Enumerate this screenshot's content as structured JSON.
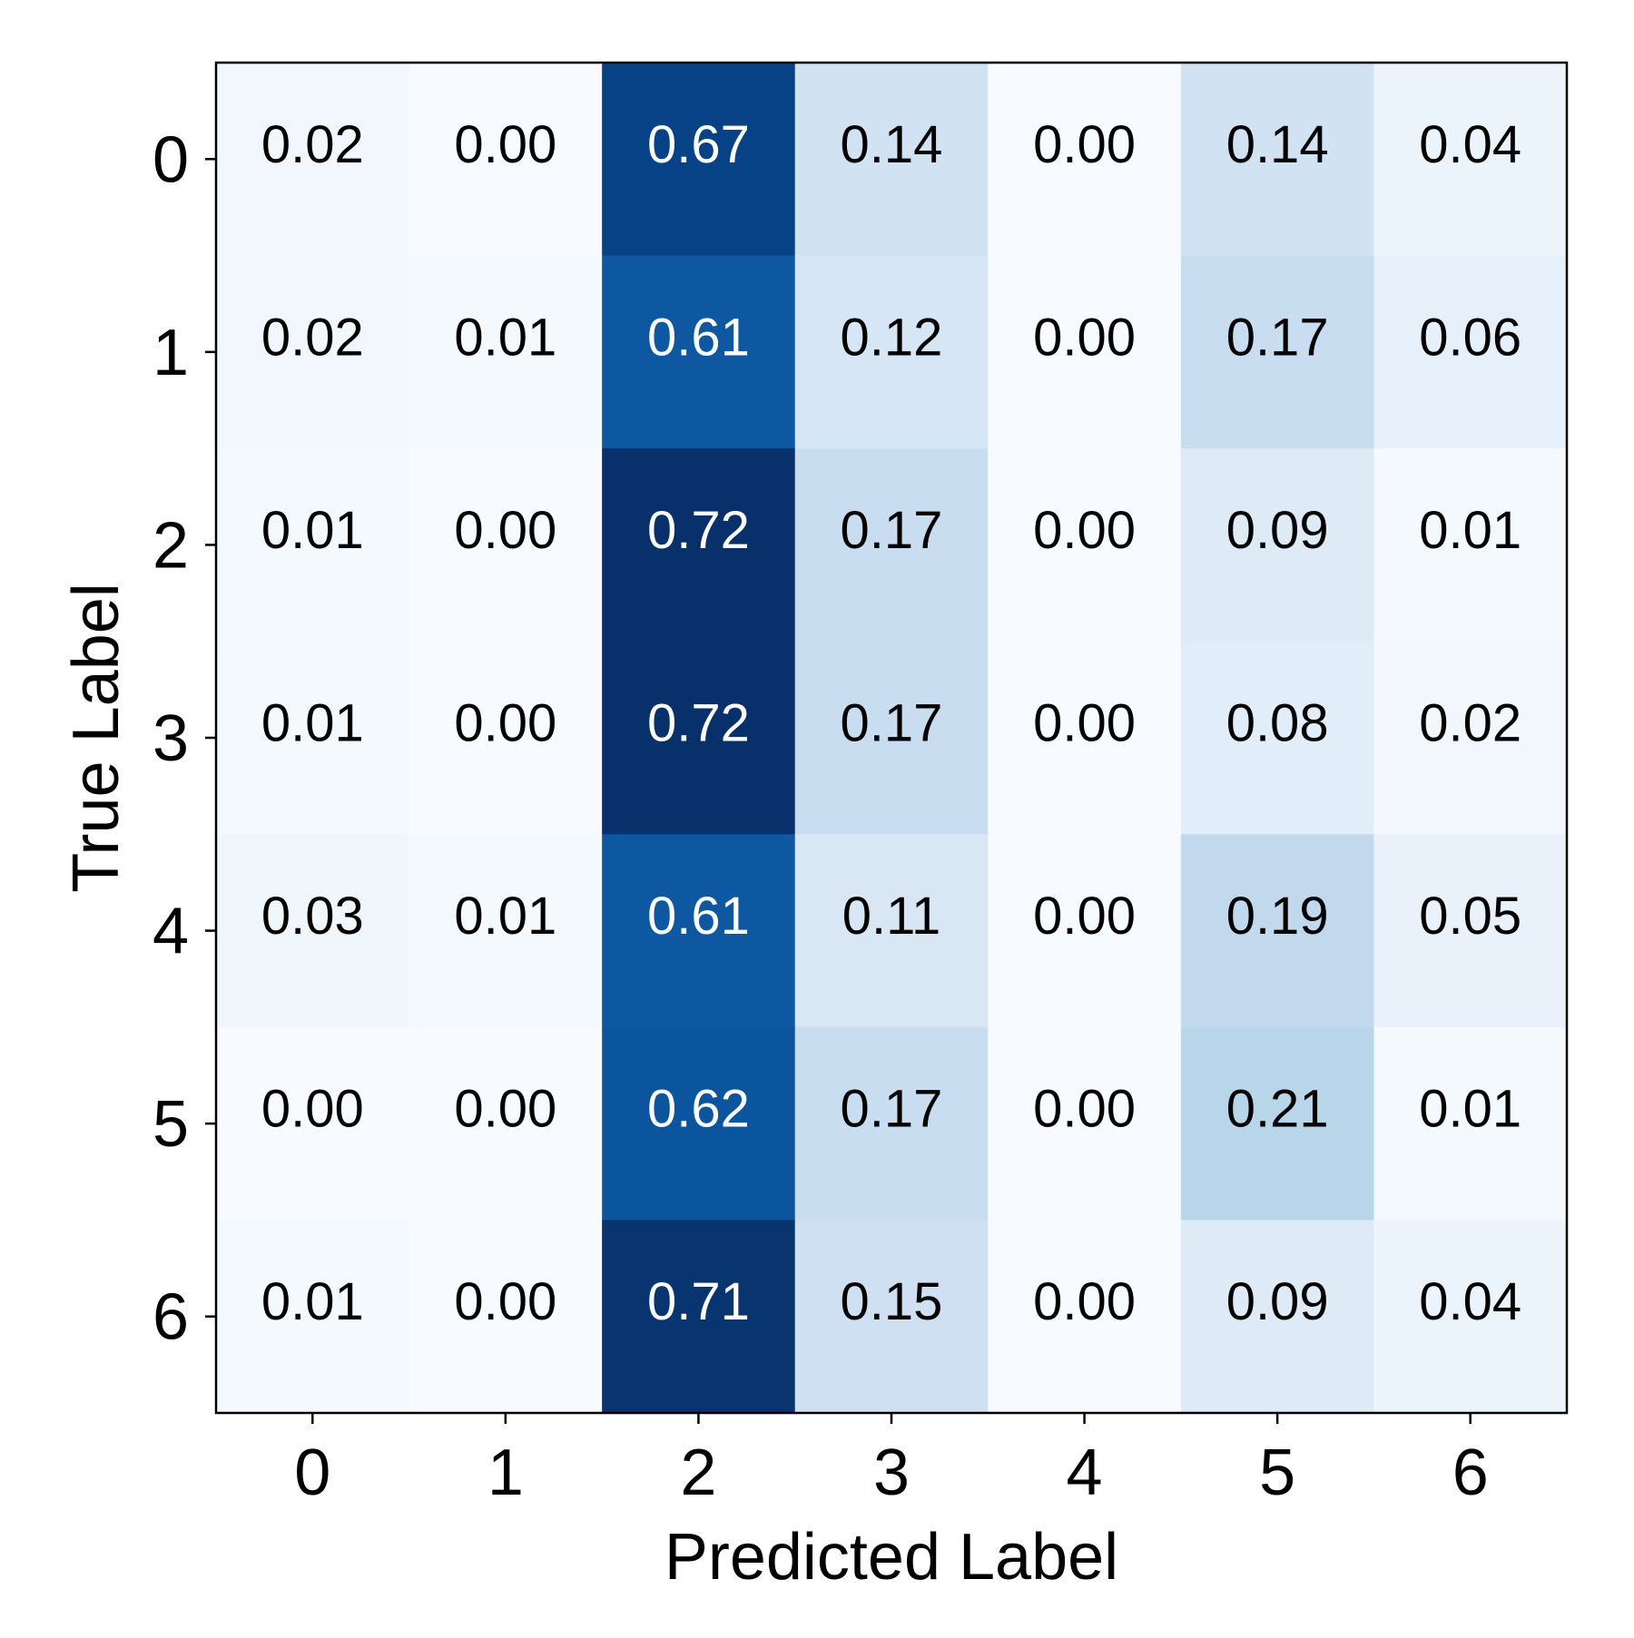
{
  "chart_data": {
    "type": "heatmap",
    "title": "",
    "xlabel": "Predicted Label",
    "ylabel": "True Label",
    "x_categories": [
      "0",
      "1",
      "2",
      "3",
      "4",
      "5",
      "6"
    ],
    "y_categories": [
      "0",
      "1",
      "2",
      "3",
      "4",
      "5",
      "6"
    ],
    "cell_labels": [
      [
        "0.02",
        "0.00",
        "0.67",
        "0.14",
        "0.00",
        "0.14",
        "0.04"
      ],
      [
        "0.02",
        "0.01",
        "0.61",
        "0.12",
        "0.00",
        "0.17",
        "0.06"
      ],
      [
        "0.01",
        "0.00",
        "0.72",
        "0.17",
        "0.00",
        "0.09",
        "0.01"
      ],
      [
        "0.01",
        "0.00",
        "0.72",
        "0.17",
        "0.00",
        "0.08",
        "0.02"
      ],
      [
        "0.03",
        "0.01",
        "0.61",
        "0.11",
        "0.00",
        "0.19",
        "0.05"
      ],
      [
        "0.00",
        "0.00",
        "0.62",
        "0.17",
        "0.00",
        "0.21",
        "0.01"
      ],
      [
        "0.01",
        "0.00",
        "0.71",
        "0.15",
        "0.00",
        "0.09",
        "0.04"
      ]
    ],
    "values": [
      [
        0.02,
        0.0,
        0.67,
        0.14,
        0.0,
        0.14,
        0.04
      ],
      [
        0.02,
        0.01,
        0.61,
        0.12,
        0.0,
        0.17,
        0.06
      ],
      [
        0.01,
        0.0,
        0.72,
        0.17,
        0.0,
        0.09,
        0.01
      ],
      [
        0.01,
        0.0,
        0.72,
        0.17,
        0.0,
        0.08,
        0.02
      ],
      [
        0.03,
        0.01,
        0.61,
        0.11,
        0.0,
        0.19,
        0.05
      ],
      [
        0.0,
        0.0,
        0.62,
        0.17,
        0.0,
        0.21,
        0.01
      ],
      [
        0.01,
        0.0,
        0.71,
        0.15,
        0.0,
        0.09,
        0.04
      ]
    ],
    "colormap": "Blues",
    "color_range": [
      0,
      0.72
    ],
    "colors": {
      "low": "#f7fbff",
      "high": "#08306b",
      "text_dark": "#000000",
      "text_light": "#ffffff"
    },
    "grid": false,
    "colorbar": false
  }
}
